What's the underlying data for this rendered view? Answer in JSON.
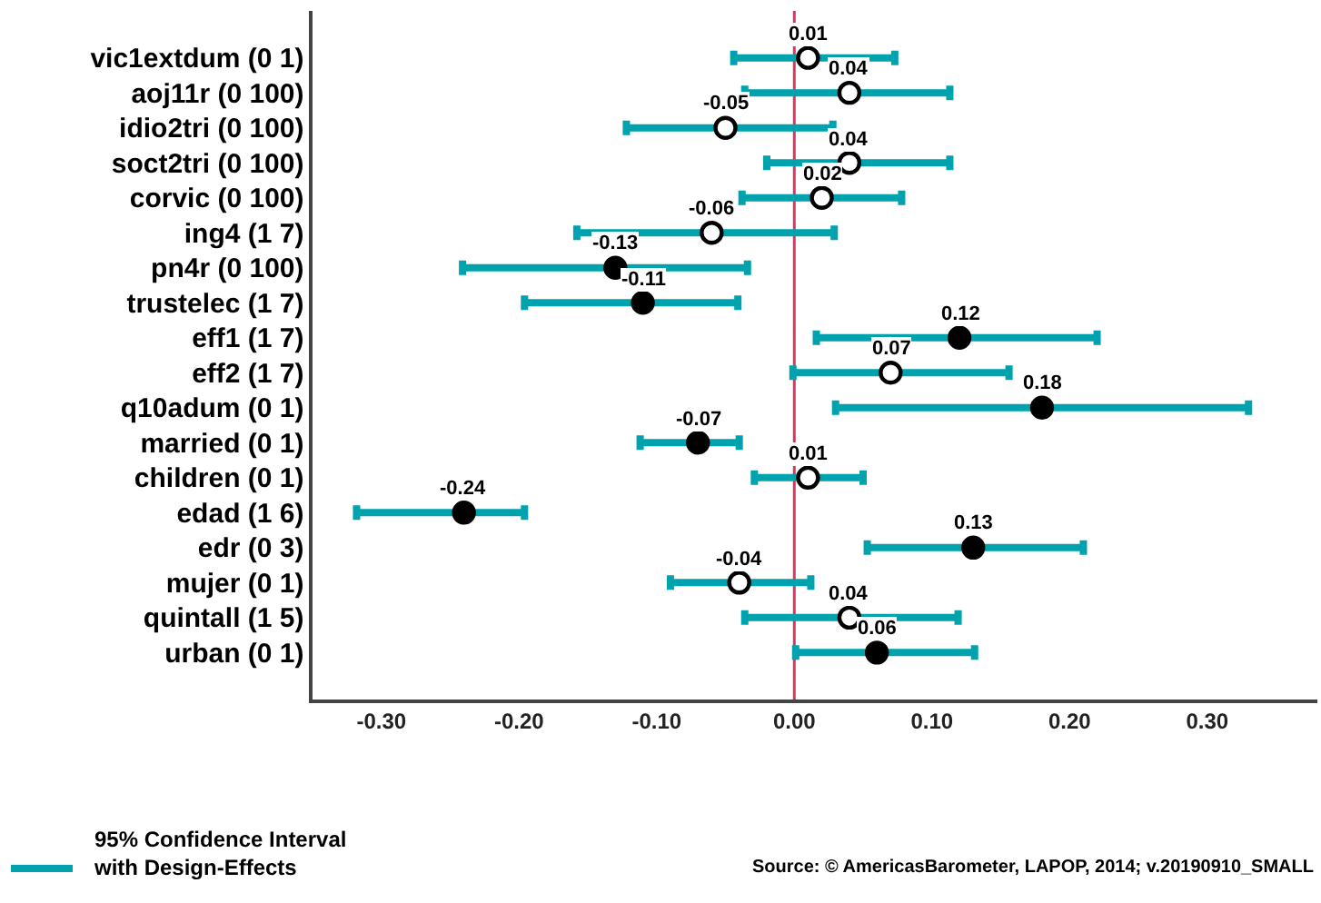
{
  "chart_data": {
    "type": "scatter",
    "orientation": "horizontal",
    "categories": [
      "vic1extdum (0 1)",
      "aoj11r (0 100)",
      "idio2tri (0 100)",
      "soct2tri (0 100)",
      "corvic (0 100)",
      "ing4 (1 7)",
      "pn4r (0 100)",
      "trustelec (1 7)",
      "eff1 (1 7)",
      "eff2 (1 7)",
      "q10adum (0 1)",
      "married (0 1)",
      "children (0 1)",
      "edad (1 6)",
      "edr (0 3)",
      "mujer (0 1)",
      "quintall (1 5)",
      "urban (0 1)"
    ],
    "series": [
      {
        "color": "#00a3ad",
        "marker": "circle",
        "values": [
          0.01,
          0.04,
          -0.05,
          0.04,
          0.02,
          -0.06,
          -0.13,
          -0.11,
          0.12,
          0.07,
          0.18,
          -0.07,
          0.01,
          -0.24,
          0.13,
          -0.04,
          0.04,
          0.06
        ],
        "colors": [
          "#ffffff",
          "#ffffff",
          "#ffffff",
          "#ffffff",
          "#ffffff",
          "#ffffff",
          "#000000",
          "#000000",
          "#000000",
          "#ffffff",
          "#000000",
          "#000000",
          "#ffffff",
          "#000000",
          "#000000",
          "#ffffff",
          "#ffffff",
          "#000000"
        ],
        "errors": [
          [
            -0.044,
            0.073
          ],
          [
            -0.036,
            0.113
          ],
          [
            -0.122,
            0.028
          ],
          [
            -0.02,
            0.113
          ],
          [
            -0.038,
            0.078
          ],
          [
            -0.158,
            0.029
          ],
          [
            -0.241,
            -0.034
          ],
          [
            -0.196,
            -0.041
          ],
          [
            0.016,
            0.22
          ],
          [
            -0.001,
            0.156
          ],
          [
            0.03,
            0.33
          ],
          [
            -0.112,
            -0.04
          ],
          [
            -0.029,
            0.05
          ],
          [
            -0.318,
            -0.196
          ],
          [
            0.053,
            0.21
          ],
          [
            -0.09,
            0.012
          ],
          [
            -0.036,
            0.119
          ],
          [
            0.001,
            0.131
          ]
        ]
      }
    ],
    "data_labels": true,
    "xlim": [
      -0.35,
      0.38
    ],
    "xticks": [
      {
        "value": -0.3,
        "label": "-0.30"
      },
      {
        "value": -0.2,
        "label": "-0.20"
      },
      {
        "value": -0.1,
        "label": "-0.10"
      },
      {
        "value": 0,
        "label": "0.00"
      },
      {
        "value": 0.1,
        "label": "0.10"
      },
      {
        "value": 0.2,
        "label": "0.20"
      },
      {
        "value": 0.3,
        "label": "0.30"
      }
    ],
    "grid": false,
    "ref_lines": [
      {
        "axis": "x",
        "value": 0,
        "color": "#d9365e"
      }
    ],
    "annotations": [
      "95% Confidence Interval\nwith Design-Effects",
      "Source: © AmericasBarometer, LAPOP, 2014; v.20190910_SMALL"
    ]
  }
}
